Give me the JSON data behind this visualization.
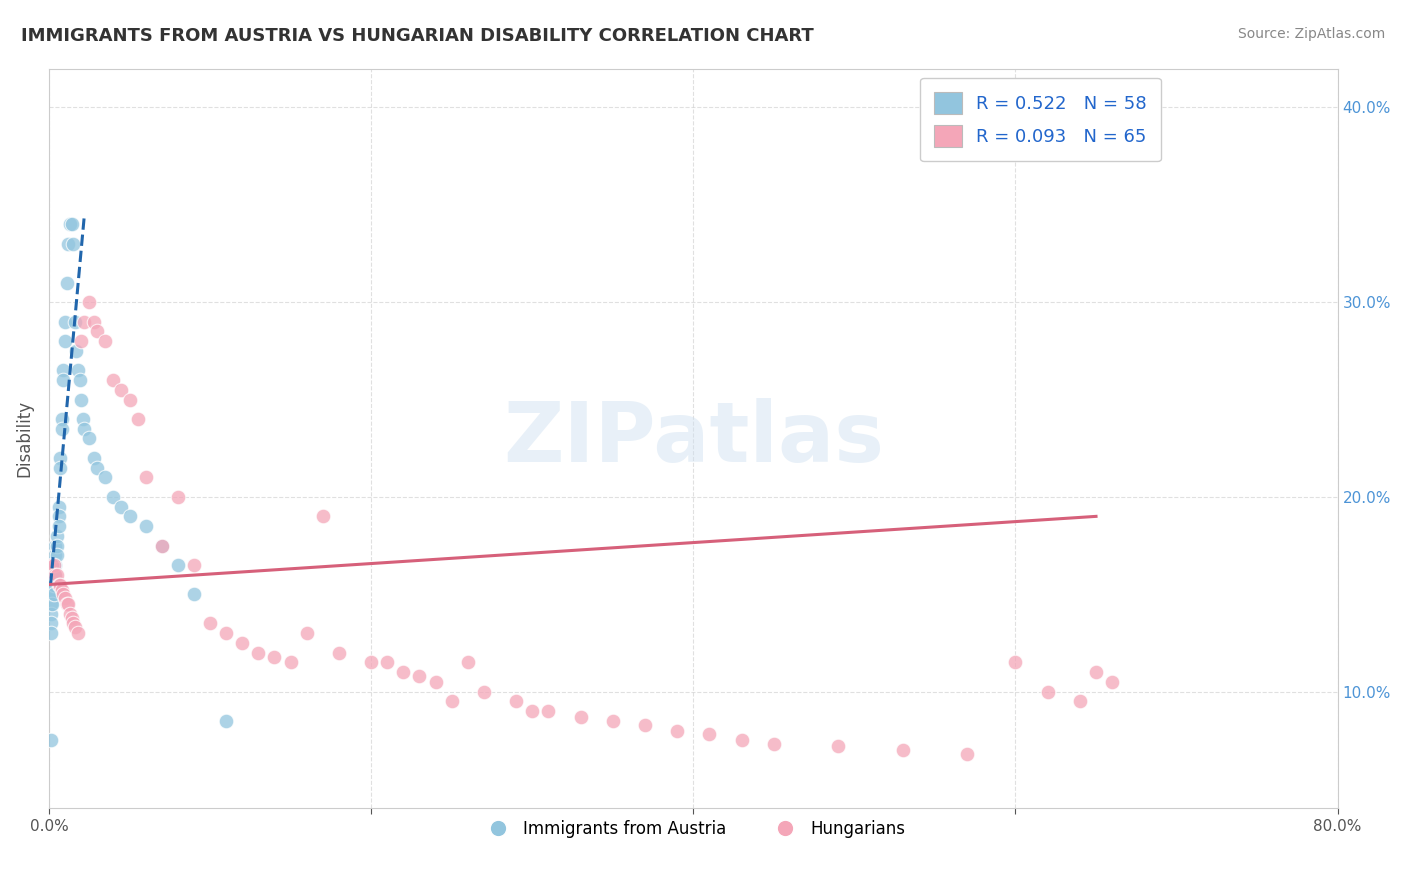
{
  "title": "IMMIGRANTS FROM AUSTRIA VS HUNGARIAN DISABILITY CORRELATION CHART",
  "source": "Source: ZipAtlas.com",
  "ylabel": "Disability",
  "xlim": [
    0.0,
    0.8
  ],
  "ylim": [
    0.04,
    0.42
  ],
  "xticks": [
    0.0,
    0.2,
    0.4,
    0.6,
    0.8
  ],
  "xticklabels": [
    "0.0%",
    "",
    "",
    "",
    "80.0%"
  ],
  "yticks": [
    0.1,
    0.2,
    0.3,
    0.4
  ],
  "yticklabels": [
    "10.0%",
    "20.0%",
    "30.0%",
    "40.0%"
  ],
  "legend_text1": "R = 0.522   N = 58",
  "legend_text2": "R = 0.093   N = 65",
  "legend_label1": "Immigrants from Austria",
  "legend_label2": "Hungarians",
  "blue_color": "#92c5de",
  "pink_color": "#f4a6b8",
  "blue_line_color": "#2166ac",
  "pink_line_color": "#d6607a",
  "watermark": "ZIPatlas",
  "background_color": "#ffffff",
  "grid_color": "#cccccc",
  "blue_x": [
    0.001,
    0.001,
    0.001,
    0.001,
    0.001,
    0.001,
    0.001,
    0.002,
    0.002,
    0.002,
    0.002,
    0.002,
    0.003,
    0.003,
    0.003,
    0.003,
    0.004,
    0.004,
    0.004,
    0.004,
    0.005,
    0.005,
    0.005,
    0.006,
    0.006,
    0.006,
    0.007,
    0.007,
    0.008,
    0.008,
    0.009,
    0.009,
    0.01,
    0.01,
    0.011,
    0.012,
    0.013,
    0.014,
    0.015,
    0.016,
    0.017,
    0.018,
    0.019,
    0.02,
    0.021,
    0.022,
    0.025,
    0.028,
    0.03,
    0.035,
    0.04,
    0.045,
    0.05,
    0.06,
    0.07,
    0.08,
    0.09,
    0.11
  ],
  "blue_y": [
    0.155,
    0.15,
    0.145,
    0.14,
    0.135,
    0.13,
    0.075,
    0.165,
    0.16,
    0.155,
    0.15,
    0.145,
    0.165,
    0.16,
    0.155,
    0.15,
    0.175,
    0.17,
    0.165,
    0.16,
    0.18,
    0.175,
    0.17,
    0.195,
    0.19,
    0.185,
    0.22,
    0.215,
    0.24,
    0.235,
    0.265,
    0.26,
    0.29,
    0.28,
    0.31,
    0.33,
    0.34,
    0.34,
    0.33,
    0.29,
    0.275,
    0.265,
    0.26,
    0.25,
    0.24,
    0.235,
    0.23,
    0.22,
    0.215,
    0.21,
    0.2,
    0.195,
    0.19,
    0.185,
    0.175,
    0.165,
    0.15,
    0.085
  ],
  "pink_x": [
    0.002,
    0.003,
    0.004,
    0.005,
    0.006,
    0.007,
    0.008,
    0.009,
    0.01,
    0.011,
    0.012,
    0.013,
    0.014,
    0.015,
    0.016,
    0.018,
    0.02,
    0.022,
    0.025,
    0.028,
    0.03,
    0.035,
    0.04,
    0.045,
    0.05,
    0.055,
    0.06,
    0.07,
    0.08,
    0.09,
    0.1,
    0.11,
    0.12,
    0.13,
    0.14,
    0.15,
    0.16,
    0.17,
    0.18,
    0.2,
    0.21,
    0.22,
    0.23,
    0.24,
    0.25,
    0.26,
    0.27,
    0.29,
    0.3,
    0.31,
    0.33,
    0.35,
    0.37,
    0.39,
    0.41,
    0.43,
    0.45,
    0.49,
    0.53,
    0.57,
    0.6,
    0.62,
    0.64,
    0.65,
    0.66
  ],
  "pink_y": [
    0.165,
    0.165,
    0.16,
    0.16,
    0.155,
    0.155,
    0.152,
    0.15,
    0.148,
    0.145,
    0.145,
    0.14,
    0.138,
    0.135,
    0.133,
    0.13,
    0.28,
    0.29,
    0.3,
    0.29,
    0.285,
    0.28,
    0.26,
    0.255,
    0.25,
    0.24,
    0.21,
    0.175,
    0.2,
    0.165,
    0.135,
    0.13,
    0.125,
    0.12,
    0.118,
    0.115,
    0.13,
    0.19,
    0.12,
    0.115,
    0.115,
    0.11,
    0.108,
    0.105,
    0.095,
    0.115,
    0.1,
    0.095,
    0.09,
    0.09,
    0.087,
    0.085,
    0.083,
    0.08,
    0.078,
    0.075,
    0.073,
    0.072,
    0.07,
    0.068,
    0.115,
    0.1,
    0.095,
    0.11,
    0.105
  ],
  "blue_line_x": [
    0.001,
    0.022
  ],
  "blue_line_y": [
    0.155,
    0.345
  ],
  "pink_line_x": [
    0.0,
    0.65
  ],
  "pink_line_y": [
    0.155,
    0.19
  ]
}
